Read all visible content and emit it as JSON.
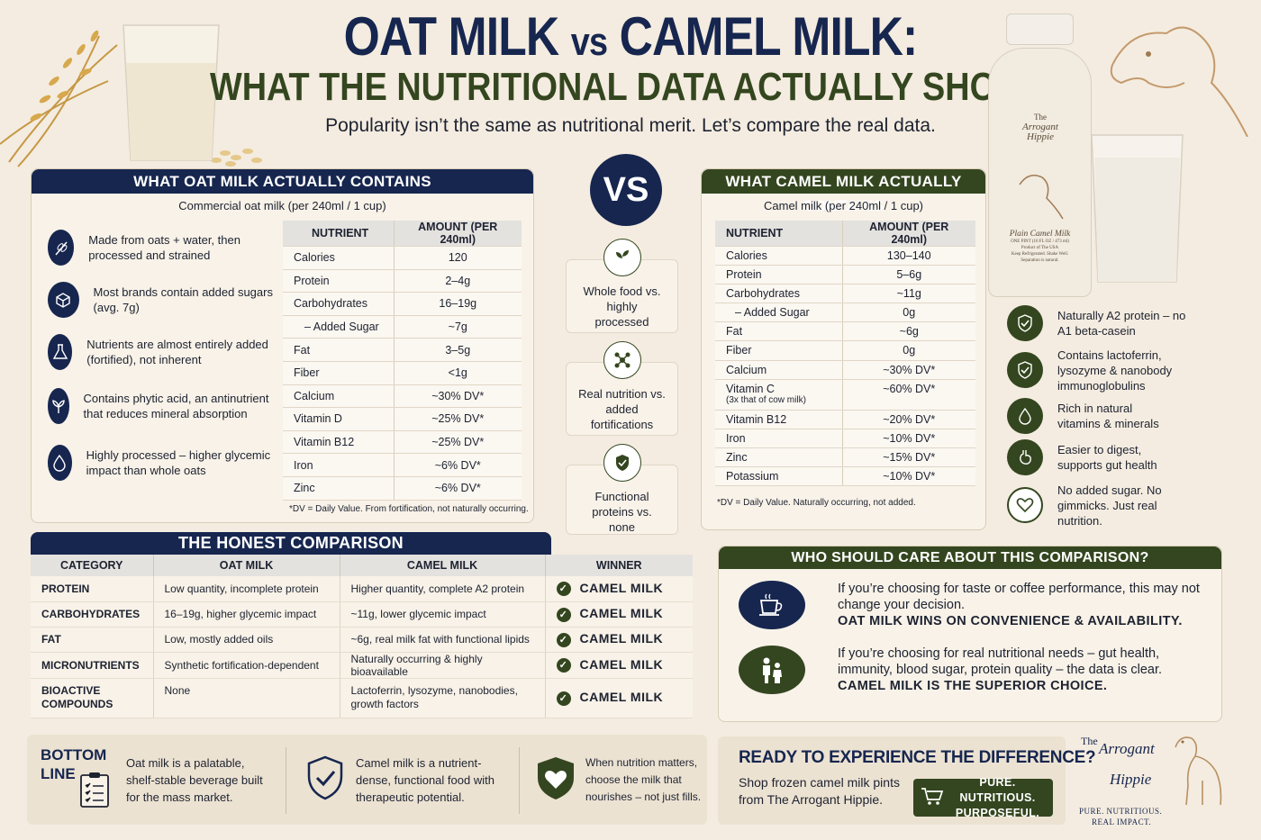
{
  "header": {
    "title_a": "OAT MILK",
    "title_vs": "vs",
    "title_b": "CAMEL MILK:",
    "title_line2": "WHAT THE NUTRITIONAL DATA ACTUALLY SHOWS",
    "subtitle": "Popularity isn’t the same as nutritional merit. Let’s compare the real data."
  },
  "oat": {
    "heading": "WHAT OAT MILK ACTUALLY CONTAINS",
    "subheading": "Commercial oat milk (per 240ml / 1 cup)",
    "features": [
      {
        "icon": "wheat-icon",
        "text": "Made from oats + water, then processed and strained"
      },
      {
        "icon": "sugar-cube-icon",
        "text": "Most brands contain added sugars (avg. 7g)"
      },
      {
        "icon": "flask-icon",
        "text": "Nutrients are almost entirely added (fortified), not inherent"
      },
      {
        "icon": "leaf-icon",
        "text": "Contains phytic acid, an antinutrient that reduces mineral absorption"
      },
      {
        "icon": "drop-icon",
        "text": "Highly processed – higher glycemic impact than whole oats"
      }
    ],
    "table_headers": [
      "NUTRIENT",
      "AMOUNT (PER 240ml)"
    ],
    "rows": [
      [
        "Calories",
        "120"
      ],
      [
        "Protein",
        "2–4g"
      ],
      [
        "Carbohydrates",
        "16–19g"
      ],
      [
        "– Added Sugar",
        "~7g"
      ],
      [
        "Fat",
        "3–5g"
      ],
      [
        "Fiber",
        "<1g"
      ],
      [
        "Calcium",
        "~30% DV*"
      ],
      [
        "Vitamin D",
        "~25% DV*"
      ],
      [
        "Vitamin B12",
        "~25% DV*"
      ],
      [
        "Iron",
        "~6% DV*"
      ],
      [
        "Zinc",
        "~6% DV*"
      ]
    ],
    "footnote": "*DV = Daily Value. From fortification, not naturally occurring."
  },
  "center": {
    "vs": "VS",
    "items": [
      {
        "icon": "sprout-icon",
        "text": "Whole food vs. highly processed"
      },
      {
        "icon": "molecule-icon",
        "text": "Real nutrition vs. added fortifications"
      },
      {
        "icon": "shield-icon",
        "text": "Functional proteins vs. none"
      }
    ]
  },
  "camel": {
    "heading": "WHAT CAMEL MILK ACTUALLY CONTAINS",
    "subheading": "Camel milk (per 240ml / 1 cup)",
    "table_headers": [
      "NUTRIENT",
      "AMOUNT (PER 240ml)"
    ],
    "rows": [
      [
        "Calories",
        "130–140",
        ""
      ],
      [
        "Protein",
        "5–6g",
        ""
      ],
      [
        "Carbohydrates",
        "~11g",
        ""
      ],
      [
        "– Added Sugar",
        "0g",
        ""
      ],
      [
        "Fat",
        "~6g",
        ""
      ],
      [
        "Fiber",
        "0g",
        ""
      ],
      [
        "Calcium",
        "~30% DV*",
        ""
      ],
      [
        "Vitamin C",
        "~60% DV*",
        "(3x that of cow milk)"
      ],
      [
        "Vitamin B12",
        "~20% DV*",
        ""
      ],
      [
        "Iron",
        "~10% DV*",
        ""
      ],
      [
        "Zinc",
        "~15% DV*",
        ""
      ],
      [
        "Potassium",
        "~10% DV*",
        ""
      ]
    ],
    "footnote": "*DV = Daily Value. Naturally occurring, not added.",
    "features": [
      {
        "icon": "shield-check-icon",
        "text": "Naturally A2 protein – no A1 beta-casein"
      },
      {
        "icon": "shield-check-icon",
        "text": "Contains lactoferrin, lysozyme & nanobody immunoglobulins"
      },
      {
        "icon": "drop-icon",
        "text": "Rich in natural vitamins & minerals"
      },
      {
        "icon": "stomach-icon",
        "text": "Easier to digest, supports gut health"
      },
      {
        "icon": "heart-icon",
        "text": "No added sugar. No gimmicks. Just real nutrition."
      }
    ]
  },
  "bottle": {
    "brand_line1": "The",
    "brand_line2": "Arrogant",
    "brand_line3": "Hippie",
    "label": "Plain Camel Milk",
    "small1": "ONE PINT (16 FL OZ / 473 ml)",
    "small2": "Product of The USA",
    "small3": "Keep Refrigerated. Shake Well.",
    "small4": "Separation is natural."
  },
  "comparison": {
    "heading": "THE HONEST COMPARISON",
    "headers": [
      "CATEGORY",
      "OAT MILK",
      "CAMEL MILK",
      "WINNER"
    ],
    "rows": [
      {
        "category": "PROTEIN",
        "oat": "Low quantity, incomplete protein",
        "camel": "Higher quantity, complete A2 protein",
        "winner": "CAMEL MILK"
      },
      {
        "category": "CARBOHYDRATES",
        "oat": "16–19g, higher glycemic impact",
        "camel": "~11g, lower glycemic impact",
        "winner": "CAMEL MILK"
      },
      {
        "category": "FAT",
        "oat": "Low, mostly added oils",
        "camel": "~6g, real milk fat with functional lipids",
        "winner": "CAMEL MILK"
      },
      {
        "category": "MICRONUTRIENTS",
        "oat": "Synthetic fortification-dependent",
        "camel": "Naturally occurring & highly bioavailable",
        "winner": "CAMEL MILK"
      },
      {
        "category": "BIOACTIVE COMPOUNDS",
        "oat": "None",
        "camel": "Lactoferrin, lysozyme, nanobodies, growth factors",
        "winner": "CAMEL MILK"
      }
    ]
  },
  "who": {
    "heading": "WHO SHOULD CARE ABOUT THIS COMPARISON?",
    "items": [
      {
        "icon": "coffee-cup-icon",
        "text": "If you’re choosing for taste or coffee performance, this may not change your decision.",
        "bold": "OAT MILK WINS ON CONVENIENCE & AVAILABILITY."
      },
      {
        "icon": "family-icon",
        "text": "If you’re choosing for real nutritional needs – gut health, immunity, blood sugar, protein quality – the data is clear.",
        "bold": "CAMEL MILK IS THE SUPERIOR CHOICE."
      }
    ]
  },
  "bottom": {
    "label": "BOTTOM LINE",
    "items": [
      {
        "icon": "clipboard-icon",
        "text": "Oat milk is a palatable, shelf-stable beverage built for the mass market."
      },
      {
        "icon": "shield-check-icon",
        "text": "Camel milk is a nutrient-dense, functional food with therapeutic potential."
      },
      {
        "icon": "heart-icon",
        "text": "When nutrition matters, choose the milk that nourishes – not just fills."
      }
    ]
  },
  "cta": {
    "heading": "READY TO EXPERIENCE THE DIFFERENCE?",
    "text": "Shop frozen camel milk pints from The Arrogant Hippie.",
    "button": "PURE. NUTRITIOUS. PURPOSEFUL."
  },
  "logo": {
    "line1": "The",
    "line2": "Arrogant",
    "line3": "Hippie",
    "tagline1": "PURE. NUTRITIOUS.",
    "tagline2": "REAL IMPACT."
  },
  "colors": {
    "navy": "#16264f",
    "olive": "#34461f",
    "background": "#f4ece0"
  }
}
